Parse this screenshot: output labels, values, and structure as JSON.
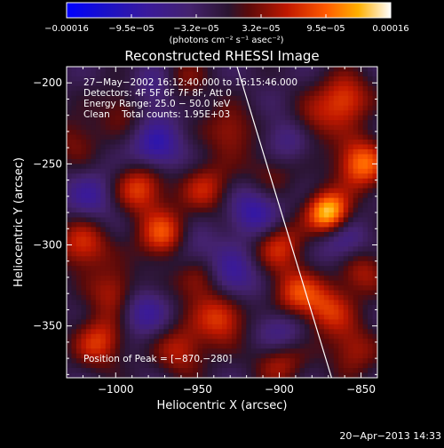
{
  "chart_data": {
    "type": "heatmap",
    "title": "Reconstructed RHESSI Image",
    "xlabel": "Heliocentric X (arcsec)",
    "ylabel": "Heliocentric Y (arcsec)",
    "xlim": [
      -1030,
      -840
    ],
    "ylim": [
      -382,
      -190
    ],
    "xticks": [
      -1000,
      -950,
      -900,
      -850
    ],
    "xtick_labels": [
      "−1000",
      "−950",
      "−900",
      "−850"
    ],
    "yticks": [
      -200,
      -250,
      -300,
      -350
    ],
    "ytick_labels": [
      "−200",
      "−250",
      "−300",
      "−350"
    ],
    "colorbar": {
      "min": -0.00016,
      "max": 0.00016,
      "tick_labels": [
        "−0.00016",
        "−9.5e−05",
        "−3.2e−05",
        "3.2e−05",
        "9.5e−05",
        "0.00016"
      ],
      "unit_label": "(photons cm⁻² s⁻¹ asec⁻²)"
    },
    "annotations": {
      "time_range": "27−May−2002 16:12:40.000 to 16:15:46.000",
      "detectors": "Detectors: 4F 5F 6F 7F 8F, Att 0",
      "energy": "Energy Range: 25.0 − 50.0 keV",
      "method": "Clean    Total counts: 1.95E+03",
      "peak": "Position of Peak = [−870,−280]"
    },
    "peak": {
      "x": -870,
      "y": -280
    },
    "limb_line": [
      {
        "x": -927,
        "y": -186
      },
      {
        "x": -868,
        "y": -382
      }
    ],
    "sources": [
      {
        "x": -870,
        "y": -280,
        "amp": 1.0
      },
      {
        "x": -850,
        "y": -250,
        "amp": 0.75
      },
      {
        "x": -860,
        "y": -210,
        "amp": 0.6
      },
      {
        "x": -985,
        "y": -265,
        "amp": 0.6
      },
      {
        "x": -970,
        "y": -295,
        "amp": 0.7
      },
      {
        "x": -950,
        "y": -320,
        "amp": 0.55
      },
      {
        "x": -935,
        "y": -345,
        "amp": 0.6
      },
      {
        "x": -1020,
        "y": -300,
        "amp": 0.55
      },
      {
        "x": -1000,
        "y": -330,
        "amp": 0.5
      },
      {
        "x": -1010,
        "y": -360,
        "amp": 0.55
      },
      {
        "x": -945,
        "y": -265,
        "amp": 0.45
      },
      {
        "x": -930,
        "y": -230,
        "amp": 0.4
      },
      {
        "x": -960,
        "y": -200,
        "amp": 0.35
      },
      {
        "x": -995,
        "y": -215,
        "amp": 0.3
      },
      {
        "x": -900,
        "y": -300,
        "amp": 0.5
      },
      {
        "x": -890,
        "y": -330,
        "amp": 0.55
      },
      {
        "x": -870,
        "y": -340,
        "amp": 0.5
      },
      {
        "x": -880,
        "y": -225,
        "amp": 0.35
      },
      {
        "x": -905,
        "y": -255,
        "amp": 0.3
      },
      {
        "x": -960,
        "y": -365,
        "amp": 0.45
      },
      {
        "x": -900,
        "y": -370,
        "amp": 0.5
      },
      {
        "x": -850,
        "y": -315,
        "amp": 0.45
      },
      {
        "x": -855,
        "y": -365,
        "amp": 0.4
      },
      {
        "x": -1025,
        "y": -235,
        "amp": 0.3
      },
      {
        "x": -975,
        "y": -240,
        "amp": -0.5
      },
      {
        "x": -955,
        "y": -305,
        "amp": -0.45
      },
      {
        "x": -915,
        "y": -280,
        "amp": -0.5
      },
      {
        "x": -985,
        "y": -340,
        "amp": -0.45
      },
      {
        "x": -930,
        "y": -320,
        "amp": -0.5
      },
      {
        "x": -860,
        "y": -300,
        "amp": -0.4
      },
      {
        "x": -900,
        "y": -355,
        "amp": -0.45
      },
      {
        "x": -975,
        "y": -205,
        "amp": -0.4
      },
      {
        "x": -1015,
        "y": -270,
        "amp": -0.35
      },
      {
        "x": -895,
        "y": -235,
        "amp": -0.35
      }
    ]
  },
  "footer": {
    "date_stamp": "20−Apr−2013 14:33"
  }
}
